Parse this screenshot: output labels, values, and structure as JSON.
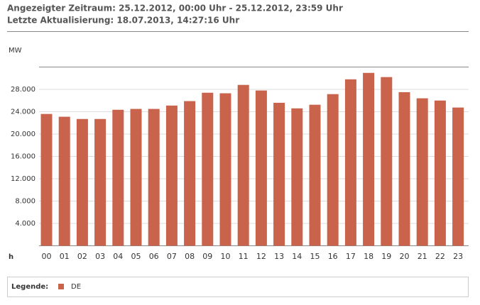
{
  "header": {
    "period": "Angezeigter Zeitraum: 25.12.2012, 00:00 Uhr - 25.12.2012, 23:59 Uhr",
    "updated": "Letzte Aktualisierung: 18.07.2013, 14:27:16 Uhr"
  },
  "chart_data": {
    "type": "bar",
    "y_label": "MW",
    "x_label": "h",
    "legend_title": "Legende:",
    "categories": [
      "00",
      "01",
      "02",
      "03",
      "04",
      "05",
      "06",
      "07",
      "08",
      "09",
      "10",
      "11",
      "12",
      "13",
      "14",
      "15",
      "16",
      "17",
      "18",
      "19",
      "20",
      "21",
      "22",
      "23"
    ],
    "series": [
      {
        "name": "DE",
        "color": "#c9634b",
        "values": [
          23600,
          23100,
          22700,
          22700,
          24350,
          24500,
          24500,
          25100,
          25900,
          27400,
          27300,
          28800,
          27800,
          25600,
          24600,
          25250,
          27150,
          29800,
          30950,
          30200,
          27500,
          26400,
          26000,
          24750
        ]
      }
    ],
    "ylim": [
      0,
      32000
    ],
    "yticks": [
      {
        "value": 4000,
        "label": "4.000"
      },
      {
        "value": 8000,
        "label": "8.000"
      },
      {
        "value": 12000,
        "label": "12.000"
      },
      {
        "value": 16000,
        "label": "16.000"
      },
      {
        "value": 20000,
        "label": "20.000"
      },
      {
        "value": 24000,
        "label": "24.000"
      },
      {
        "value": 28000,
        "label": "28.000"
      }
    ],
    "grid": true
  }
}
